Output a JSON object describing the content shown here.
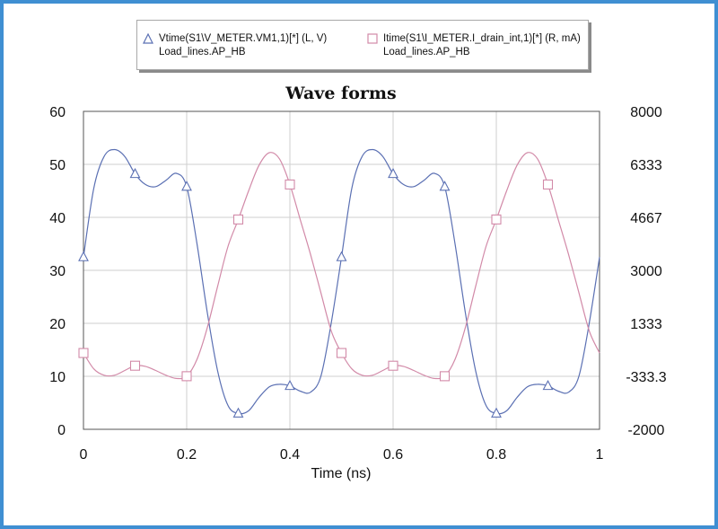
{
  "chart_data": {
    "type": "line",
    "title": "Wave forms",
    "xlabel": "Time (ns)",
    "ylabel_left": "",
    "ylabel_right": "",
    "xlim": [
      0,
      1
    ],
    "ylim_left": [
      0,
      60
    ],
    "ylim_right": [
      -2000,
      8000
    ],
    "x_ticks": [
      "0",
      "0.2",
      "0.4",
      "0.6",
      "0.8",
      "1"
    ],
    "y_left_ticks": [
      "0",
      "10",
      "20",
      "30",
      "40",
      "50",
      "60"
    ],
    "y_right_ticks": [
      "-2000",
      "-333.3",
      "1333",
      "3000",
      "4667",
      "6333",
      "8000"
    ],
    "grid": true,
    "legend_position": "top",
    "series": [
      {
        "name": "Vtime(S1\\V_METER.VM1,1)[*] (L, V)",
        "source": "Load_lines.AP_HB",
        "axis": "left",
        "marker": "triangle",
        "color": "#5b70b3",
        "points": [
          [
            0.0,
            32.5
          ],
          [
            0.02,
            45.5
          ],
          [
            0.04,
            51.5
          ],
          [
            0.06,
            52.8
          ],
          [
            0.08,
            51.5
          ],
          [
            0.1,
            48.2
          ],
          [
            0.12,
            46.2
          ],
          [
            0.14,
            45.8
          ],
          [
            0.16,
            47.0
          ],
          [
            0.18,
            48.3
          ],
          [
            0.2,
            45.8
          ],
          [
            0.22,
            35.0
          ],
          [
            0.24,
            22.0
          ],
          [
            0.26,
            11.0
          ],
          [
            0.28,
            4.5
          ],
          [
            0.3,
            3.0
          ],
          [
            0.32,
            3.5
          ],
          [
            0.34,
            6.0
          ],
          [
            0.36,
            8.0
          ],
          [
            0.38,
            8.5
          ],
          [
            0.4,
            8.2
          ],
          [
            0.42,
            7.2
          ],
          [
            0.44,
            7.0
          ],
          [
            0.46,
            10.0
          ],
          [
            0.48,
            20.0
          ],
          [
            0.5,
            32.5
          ],
          [
            0.52,
            45.5
          ],
          [
            0.54,
            51.5
          ],
          [
            0.56,
            52.8
          ],
          [
            0.58,
            51.5
          ],
          [
            0.6,
            48.2
          ],
          [
            0.62,
            46.2
          ],
          [
            0.64,
            45.8
          ],
          [
            0.66,
            47.0
          ],
          [
            0.68,
            48.3
          ],
          [
            0.7,
            45.8
          ],
          [
            0.72,
            35.0
          ],
          [
            0.74,
            22.0
          ],
          [
            0.76,
            11.0
          ],
          [
            0.78,
            4.5
          ],
          [
            0.8,
            3.0
          ],
          [
            0.82,
            3.5
          ],
          [
            0.84,
            6.0
          ],
          [
            0.86,
            8.0
          ],
          [
            0.88,
            8.5
          ],
          [
            0.9,
            8.2
          ],
          [
            0.92,
            7.2
          ],
          [
            0.94,
            7.0
          ],
          [
            0.96,
            10.0
          ],
          [
            0.98,
            20.0
          ],
          [
            1.0,
            32.5
          ]
        ],
        "marker_x": [
          0.0,
          0.1,
          0.2,
          0.3,
          0.4,
          0.5,
          0.6,
          0.7,
          0.8,
          0.9
        ]
      },
      {
        "name": "Itime(S1\\I_METER.I_drain_int,1)[*] (R, mA)",
        "source": "Load_lines.AP_HB",
        "axis": "right",
        "marker": "square",
        "color": "#d28aa8",
        "points": [
          [
            0.0,
            400
          ],
          [
            0.02,
            -100
          ],
          [
            0.04,
            -300
          ],
          [
            0.06,
            -300
          ],
          [
            0.08,
            -150
          ],
          [
            0.1,
            0
          ],
          [
            0.12,
            -20
          ],
          [
            0.14,
            -150
          ],
          [
            0.16,
            -300
          ],
          [
            0.18,
            -400
          ],
          [
            0.2,
            -330
          ],
          [
            0.22,
            200
          ],
          [
            0.24,
            1200
          ],
          [
            0.26,
            2500
          ],
          [
            0.28,
            3750
          ],
          [
            0.3,
            4600
          ],
          [
            0.32,
            5500
          ],
          [
            0.34,
            6300
          ],
          [
            0.36,
            6700
          ],
          [
            0.38,
            6500
          ],
          [
            0.4,
            5700
          ],
          [
            0.42,
            4600
          ],
          [
            0.44,
            3500
          ],
          [
            0.46,
            2300
          ],
          [
            0.48,
            1100
          ],
          [
            0.5,
            400
          ],
          [
            0.52,
            -100
          ],
          [
            0.54,
            -300
          ],
          [
            0.56,
            -300
          ],
          [
            0.58,
            -150
          ],
          [
            0.6,
            0
          ],
          [
            0.62,
            -20
          ],
          [
            0.64,
            -150
          ],
          [
            0.66,
            -300
          ],
          [
            0.68,
            -400
          ],
          [
            0.7,
            -330
          ],
          [
            0.72,
            200
          ],
          [
            0.74,
            1200
          ],
          [
            0.76,
            2500
          ],
          [
            0.78,
            3750
          ],
          [
            0.8,
            4600
          ],
          [
            0.82,
            5500
          ],
          [
            0.84,
            6300
          ],
          [
            0.86,
            6700
          ],
          [
            0.88,
            6500
          ],
          [
            0.9,
            5700
          ],
          [
            0.92,
            4600
          ],
          [
            0.94,
            3500
          ],
          [
            0.96,
            2300
          ],
          [
            0.98,
            1100
          ],
          [
            1.0,
            400
          ]
        ],
        "marker_x": [
          0.0,
          0.1,
          0.2,
          0.3,
          0.4,
          0.5,
          0.6,
          0.7,
          0.8,
          0.9
        ]
      }
    ]
  },
  "legend": {
    "v_line1": "Vtime(S1\\V_METER.VM1,1)[*] (L, V)",
    "v_line2": "Load_lines.AP_HB",
    "i_line1": "Itime(S1\\I_METER.I_drain_int,1)[*] (R, mA)",
    "i_line2": "Load_lines.AP_HB"
  }
}
